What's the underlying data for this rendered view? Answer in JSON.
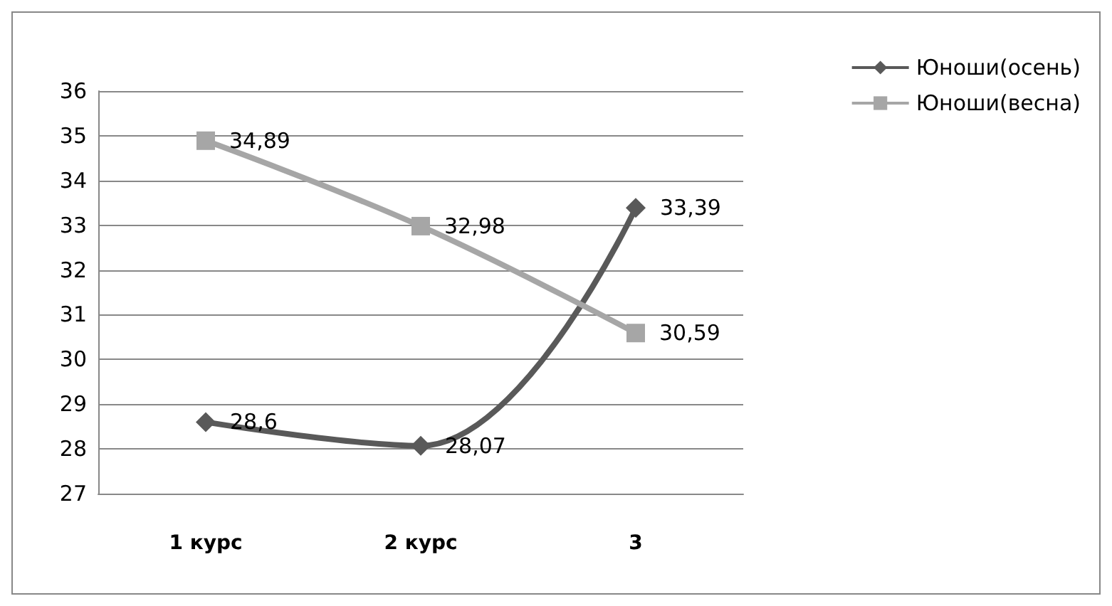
{
  "chart_data": {
    "type": "line",
    "categories": [
      "1 курс",
      "2 курс",
      "3"
    ],
    "series": [
      {
        "name": "Юноши(осень)",
        "color": "#595959",
        "marker": "diamond",
        "values": [
          28.6,
          28.07,
          33.39
        ],
        "value_labels": [
          "28,6",
          "28,07",
          "33,39"
        ]
      },
      {
        "name": "Юноши(весна)",
        "color": "#a6a6a6",
        "marker": "square",
        "values": [
          34.89,
          32.98,
          30.59
        ],
        "value_labels": [
          "34,89",
          "32,98",
          "30,59"
        ]
      }
    ],
    "ylim": [
      27,
      36
    ],
    "yticks": [
      27,
      28,
      29,
      30,
      31,
      32,
      33,
      34,
      35,
      36
    ],
    "grid": "y",
    "legend": "top right"
  }
}
